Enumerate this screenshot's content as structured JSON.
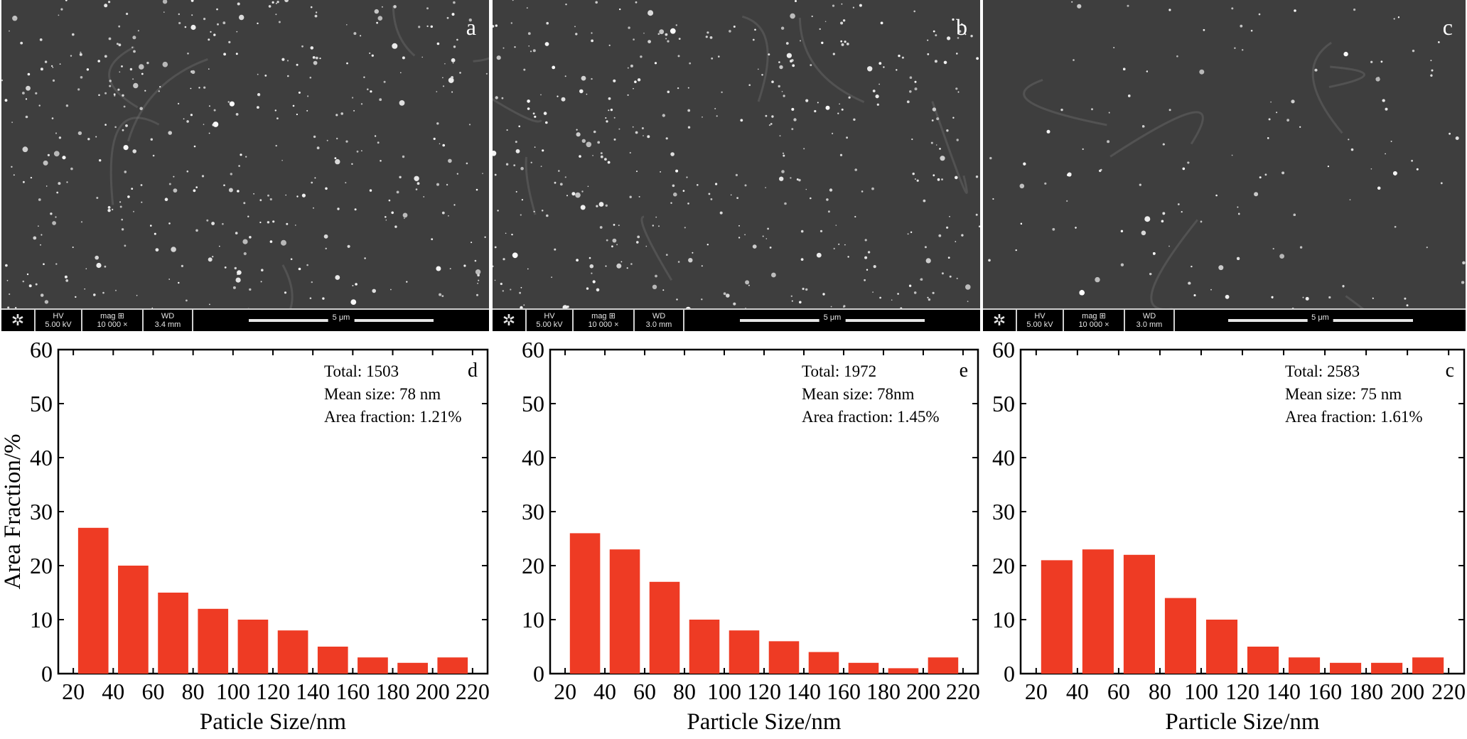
{
  "sem_panels": [
    {
      "letter": "a",
      "hv_label": "HV",
      "hv": "5.00 kV",
      "mag_label": "mag ⊞",
      "mag": "10 000 ×",
      "wd_label": "WD",
      "wd": "3.4 mm",
      "scale": "5 μm"
    },
    {
      "letter": "b",
      "hv_label": "HV",
      "hv": "5.00 kV",
      "mag_label": "mag ⊞",
      "mag": "10 000 ×",
      "wd_label": "WD",
      "wd": "3.0 mm",
      "scale": "5 μm"
    },
    {
      "letter": "c",
      "hv_label": "HV",
      "hv": "5.00 kV",
      "mag_label": "mag ⊞",
      "mag": "10 000 ×",
      "wd_label": "WD",
      "wd": "3.0 mm",
      "scale": "5 μm"
    }
  ],
  "chart_data": [
    {
      "type": "bar",
      "letter": "d",
      "categories": [
        "20-40",
        "40-60",
        "60-80",
        "80-100",
        "100-120",
        "120-140",
        "140-160",
        "160-180",
        "180-200",
        "200-220"
      ],
      "values": [
        27,
        20,
        15,
        12,
        10,
        8,
        5,
        3,
        2,
        3
      ],
      "xticks": [
        "20",
        "40",
        "60",
        "80",
        "100",
        "120",
        "140",
        "160",
        "180",
        "200",
        "220"
      ],
      "xlabel": "Paticle Size/nm",
      "ylabel": "Area Fraction/%",
      "ylim": [
        0,
        60
      ],
      "yticks": [
        "0",
        "10",
        "20",
        "30",
        "40",
        "50",
        "60"
      ],
      "annotations": [
        "Total: 1503",
        "Mean size: 78 nm",
        "Area fraction: 1.21%"
      ],
      "bar_color": "#ee3b24"
    },
    {
      "type": "bar",
      "letter": "e",
      "categories": [
        "20-40",
        "40-60",
        "60-80",
        "80-100",
        "100-120",
        "120-140",
        "140-160",
        "160-180",
        "180-200",
        "200-220"
      ],
      "values": [
        26,
        23,
        17,
        10,
        8,
        6,
        4,
        2,
        1,
        3
      ],
      "xticks": [
        "20",
        "40",
        "60",
        "80",
        "100",
        "120",
        "140",
        "160",
        "180",
        "200",
        "220"
      ],
      "xlabel": "Particle Size/nm",
      "ylabel": "",
      "ylim": [
        0,
        60
      ],
      "yticks": [
        "0",
        "10",
        "20",
        "30",
        "40",
        "50",
        "60"
      ],
      "annotations": [
        "Total:  1972",
        "Mean size: 78nm",
        "Area fraction: 1.45%"
      ],
      "bar_color": "#ee3b24"
    },
    {
      "type": "bar",
      "letter": "c",
      "categories": [
        "20-40",
        "40-60",
        "60-80",
        "80-100",
        "100-120",
        "120-140",
        "140-160",
        "160-180",
        "180-200",
        "200-220"
      ],
      "values": [
        21,
        23,
        22,
        14,
        10,
        5,
        3,
        2,
        2,
        3
      ],
      "xticks": [
        "20",
        "40",
        "60",
        "80",
        "100",
        "120",
        "140",
        "160",
        "180",
        "200",
        "220"
      ],
      "xlabel": "Particle Size/nm",
      "ylabel": "",
      "ylim": [
        0,
        60
      ],
      "yticks": [
        "0",
        "10",
        "20",
        "30",
        "40",
        "50",
        "60"
      ],
      "annotations": [
        "Total: 2583",
        "Mean size: 75 nm",
        "Area fraction: 1.61%"
      ],
      "bar_color": "#ee3b24"
    }
  ]
}
